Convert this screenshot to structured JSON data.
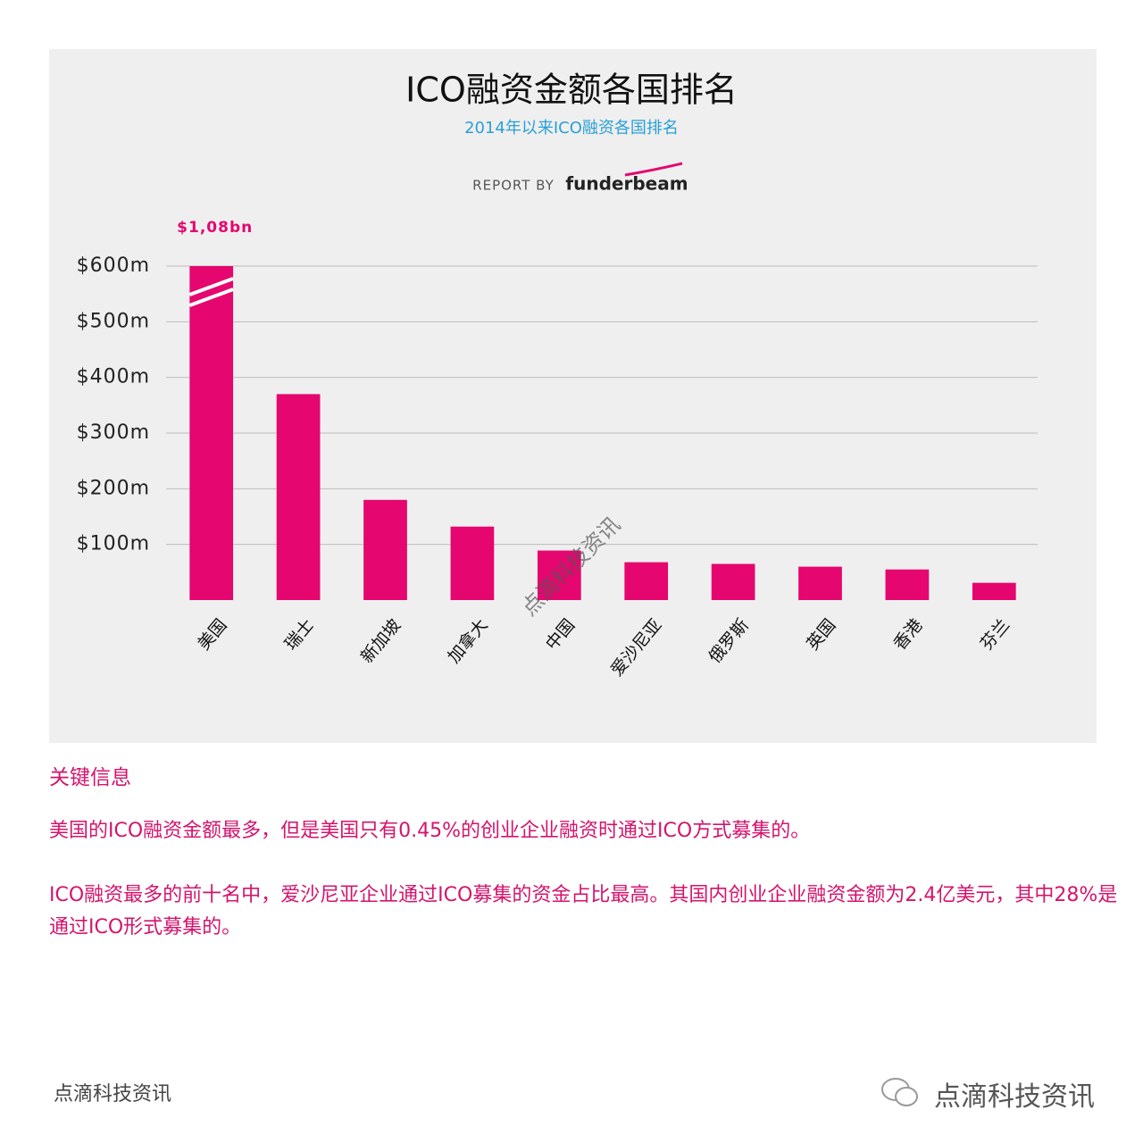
{
  "chart_data": {
    "type": "bar",
    "title": "ICO融资金额各国排名",
    "subtitle": "2014年以来ICO融资各国排名",
    "report_by": "REPORT BY",
    "brand": "funderbeam",
    "categories": [
      "美国",
      "瑞士",
      "新加坡",
      "加拿大",
      "中国",
      "爱沙尼亚",
      "俄罗斯",
      "英国",
      "香港",
      "芬兰"
    ],
    "values": [
      1080,
      370,
      180,
      132,
      89,
      68,
      65,
      60,
      55,
      31
    ],
    "value_labels": [
      "$1,08bn",
      null,
      null,
      null,
      null,
      null,
      null,
      null,
      null,
      null
    ],
    "color": "#e5066f",
    "ylim": [
      0,
      600
    ],
    "yticks": [
      {
        "value": 100,
        "label": "$100m"
      },
      {
        "value": 200,
        "label": "$200m"
      },
      {
        "value": 300,
        "label": "$300m"
      },
      {
        "value": 400,
        "label": "$400m"
      },
      {
        "value": 500,
        "label": "$500m"
      },
      {
        "value": 600,
        "label": "$600m"
      }
    ],
    "grid": true,
    "watermark": "点滴科技资讯"
  },
  "key_info": {
    "heading": "关键信息",
    "paragraphs": [
      "美国的ICO融资金额最多，但是美国只有0.45%的创业企业融资时通过ICO方式募集的。",
      "ICO融资最多的前十名中，爱沙尼亚企业通过ICO募集的资金占比最高。其国内创业企业融资金额为2.4亿美元，其中28%是通过ICO形式募集的。"
    ]
  },
  "footer": {
    "left": "点滴科技资讯",
    "right": "点滴科技资讯"
  }
}
